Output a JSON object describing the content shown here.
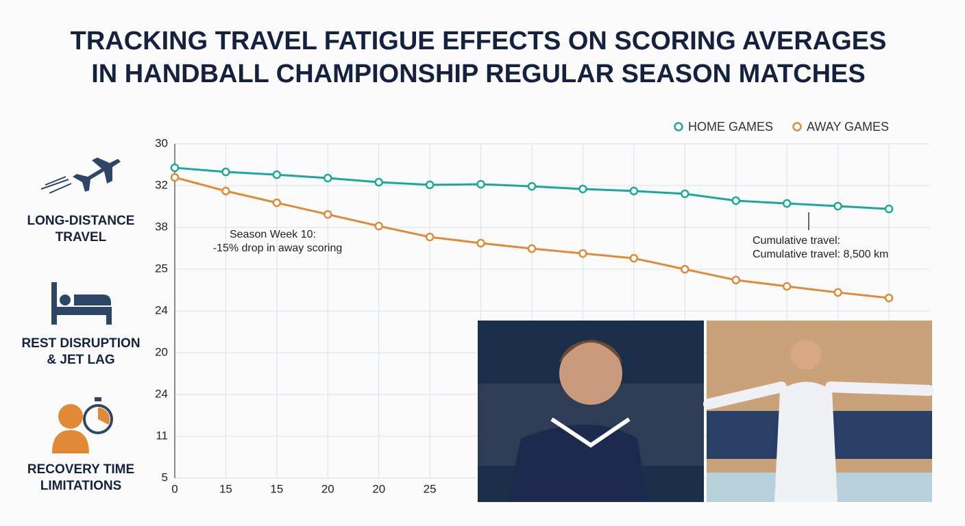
{
  "chart_data": {
    "type": "line",
    "title": [
      "TRACKING TRAVEL FATIGUE EFFECTS ON SCORING AVERAGES",
      "IN HANDBALL CHAMPIONSHIP REGULAR SEASON MATCHES"
    ],
    "categories": [
      "0",
      "15",
      "15",
      "20",
      "20",
      "25",
      null,
      null,
      null,
      null,
      null,
      null,
      null,
      null,
      null
    ],
    "series": [
      {
        "name": "HOME GAMES",
        "color": "#1aa89a",
        "values": [
          28.21,
          27.9,
          27.69,
          27.44,
          27.13,
          26.93,
          26.98,
          26.82,
          26.62,
          26.47,
          26.26,
          25.75,
          25.54,
          25.34,
          25.13
        ]
      },
      {
        "name": "AWAY GAMES",
        "color": "#e08a35",
        "values": [
          27.49,
          26.47,
          25.59,
          24.72,
          23.85,
          23.03,
          22.57,
          22.16,
          21.8,
          21.44,
          20.62,
          19.81,
          19.34,
          18.88,
          18.47
        ]
      }
    ],
    "ylim": [
      5,
      30
    ],
    "y_labels": [
      "30",
      "32",
      "38",
      "25",
      "24",
      "20",
      "24",
      "11",
      "5"
    ],
    "grid": true,
    "legend": "top-right",
    "annotations": [
      [
        "Season Week 10:",
        "-15% drop in away scoring"
      ],
      [
        "Cumulative travel:",
        "Cumulative travel: 8,500 km"
      ]
    ]
  },
  "side_labels": [
    [
      "LONG-DISTANCE",
      "TRAVEL"
    ],
    [
      "REST DISRUPTION",
      "& JET LAG"
    ],
    [
      "RECOVERY TIME",
      "LIMITATIONS"
    ]
  ]
}
